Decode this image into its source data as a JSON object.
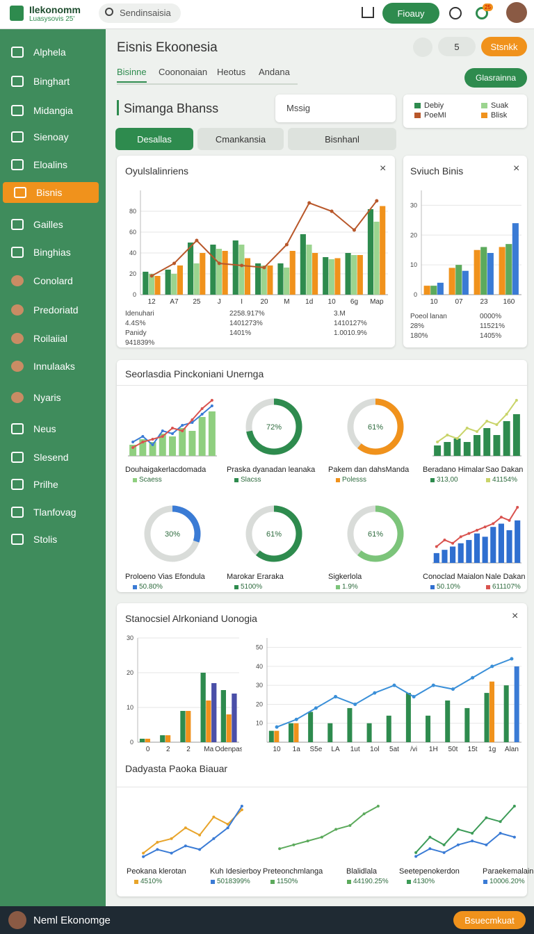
{
  "header": {
    "brand": "Ilekonomm",
    "tagline": "Luasysovis 25'",
    "search": "Sendinsaisia",
    "button": "Fioauy",
    "badge": "25"
  },
  "sidebar": {
    "items": [
      "Alphela",
      "Binghart",
      "Midangia",
      "Sienoay",
      "Eloalins",
      "Bisnis",
      "Gailles",
      "Binghias",
      "Conolard",
      "Predoriatd",
      "Roilaiial",
      "Innulaaks",
      "Nyaris",
      "Neus",
      "Slesend",
      "Prilhe",
      "Tlanfovag",
      "Stolis"
    ],
    "active": 5
  },
  "page": {
    "title": "Eisnis Ekoonesia",
    "count": "5",
    "action": "Stsnkk",
    "tabs": [
      "Bisinne",
      "Coononaian",
      "Heotus",
      "Andana"
    ],
    "tab_active": 0,
    "dropdown": "Glasrainna"
  },
  "section": {
    "title": "Simanga Bhanss",
    "search": "Mssig",
    "buttons": [
      "Desallas",
      "Cmankansia",
      "Bisnhanl"
    ]
  },
  "panels": [
    "Seorlasdia Pinckoniani Unernga",
    "Dadyasta Paoka Biauar"
  ],
  "footer": {
    "name": "Neml Ekonomge",
    "button": "Bsuecmkuat"
  },
  "chart_data": [
    {
      "type": "bar",
      "title": "Oyulslalinriens",
      "categories": [
        "12",
        "A7",
        "25",
        "J",
        "I",
        "20",
        "M",
        "1d",
        "10",
        "6g",
        "Map"
      ],
      "ylim": [
        0,
        100
      ],
      "yticks": [
        0,
        20,
        40,
        60,
        80
      ],
      "series": [
        {
          "name": "Debiy",
          "color": "#2e8b4e",
          "values": [
            22,
            24,
            50,
            48,
            52,
            30,
            30,
            58,
            36,
            40,
            82
          ]
        },
        {
          "name": "Suak",
          "color": "#9bd48f",
          "values": [
            20,
            20,
            30,
            44,
            48,
            28,
            26,
            48,
            34,
            38,
            70
          ]
        },
        {
          "name": "Blisk",
          "color": "#f0921c",
          "values": [
            18,
            28,
            40,
            42,
            35,
            28,
            42,
            40,
            35,
            38,
            85
          ]
        },
        {
          "name": "PoeMI",
          "color": "#b8572a",
          "style": "line",
          "values": [
            18,
            30,
            52,
            30,
            28,
            26,
            48,
            88,
            80,
            62,
            90
          ]
        }
      ],
      "notes": [
        "Idenuhari",
        "2258.917%",
        "3.M",
        "4.4S%",
        "1401273%",
        "1410127%",
        "Panidy",
        "1401%",
        "1.0010.9%",
        "941839%"
      ]
    },
    {
      "type": "bar",
      "title": "Sviuch Binis",
      "categories": [
        "10",
        "07",
        "23",
        "160"
      ],
      "ylim": [
        0,
        35
      ],
      "yticks": [
        0,
        10,
        20,
        30
      ],
      "series": [
        {
          "color": "#f0921c",
          "values": [
            3,
            9,
            15,
            16
          ]
        },
        {
          "color": "#5caa5c",
          "values": [
            3,
            10,
            16,
            17
          ]
        },
        {
          "color": "#3a7bd5",
          "values": [
            4,
            8,
            14,
            24
          ]
        }
      ],
      "notes": [
        "Poeol lanan",
        "0000%",
        "28%",
        "11521%",
        "180%",
        "1405%"
      ]
    },
    {
      "type": "bar",
      "title": "Douhaigakerlacdomada",
      "notes": [
        "Scaess"
      ],
      "series": [
        {
          "color": "#8fcf7f",
          "values": [
            4,
            6,
            5,
            8,
            7,
            10,
            9,
            14,
            16
          ]
        },
        {
          "color": "#3a7bd5",
          "style": "line",
          "values": [
            5,
            7,
            4,
            9,
            8,
            11,
            12,
            15,
            18
          ]
        },
        {
          "color": "#d9534f",
          "style": "line",
          "values": [
            3,
            5,
            6,
            7,
            10,
            9,
            13,
            17,
            20
          ]
        }
      ]
    },
    {
      "type": "donut",
      "title": "Praska dyanadan leanaka",
      "notes": [
        "Slacss"
      ],
      "values": [
        72
      ],
      "value_labels": [
        "72%"
      ],
      "color": "#2e8b4e"
    },
    {
      "type": "donut",
      "title": "Pakem dan dahsManda",
      "notes": [
        "Polesss"
      ],
      "values": [
        61
      ],
      "value_labels": [
        "61%"
      ],
      "color": "#f0921c"
    },
    {
      "type": "bar",
      "title": "Beradano Himalar",
      "notes": [
        "313,00",
        "Sao Dakan",
        "41154%"
      ],
      "series": [
        {
          "color": "#2e8b4e",
          "values": [
            3,
            4,
            5,
            4,
            6,
            8,
            6,
            10,
            12
          ]
        },
        {
          "color": "#c9d46a",
          "style": "line",
          "values": [
            4,
            6,
            5,
            8,
            7,
            10,
            9,
            12,
            16
          ]
        }
      ]
    },
    {
      "type": "donut",
      "title": "Proloeno Vias Efondula",
      "notes": [
        "50.80%"
      ],
      "values": [
        30
      ],
      "value_labels": [
        "30%"
      ],
      "color": "#3a7bd5"
    },
    {
      "type": "donut",
      "title": "Marokar Eraraka",
      "notes": [
        "5100%"
      ],
      "values": [
        61
      ],
      "value_labels": [
        "61%"
      ],
      "color": "#2e8b4e"
    },
    {
      "type": "donut",
      "title": "Sigkerlola",
      "notes": [
        "1.9%"
      ],
      "values": [
        61
      ],
      "value_labels": [
        "61%"
      ],
      "color": "#7cc47a"
    },
    {
      "type": "bar",
      "title": "Conoclad Maialon",
      "notes": [
        "50.10%",
        "Nale Dakan",
        "611107%"
      ],
      "series": [
        {
          "color": "#2f6fd0",
          "values": [
            3,
            4,
            5,
            6,
            7,
            9,
            8,
            11,
            12,
            10,
            13
          ]
        },
        {
          "color": "#d9534f",
          "style": "line",
          "values": [
            5,
            7,
            6,
            8,
            9,
            10,
            11,
            12,
            14,
            13,
            17
          ]
        }
      ]
    },
    {
      "type": "bar",
      "categories": [
        "0",
        "2",
        "2",
        "Ma",
        "Odenpas"
      ],
      "ylim": [
        0,
        30
      ],
      "yticks": [
        0,
        10,
        20,
        30
      ],
      "series": [
        {
          "color": "#2e8b4e",
          "values": [
            1,
            2,
            9,
            20,
            15
          ]
        },
        {
          "color": "#f0921c",
          "values": [
            1,
            2,
            9,
            12,
            8
          ]
        },
        {
          "color": "#4a4fa8",
          "values": [
            0,
            0,
            0,
            17,
            14
          ]
        }
      ]
    },
    {
      "type": "bar",
      "title": "Stanocsiel Alrkoniand Uonogia",
      "categories": [
        "10",
        "1a",
        "S5e",
        "LA",
        "1ut",
        "1ol",
        "5at",
        "/vi",
        "1H",
        "50t",
        "15t",
        "1g",
        "Alan"
      ],
      "ylim": [
        0,
        55
      ],
      "yticks": [
        10,
        20,
        30,
        40,
        50
      ],
      "series": [
        {
          "color": "#2e8b4e",
          "values": [
            6,
            10,
            16,
            10,
            18,
            10,
            14,
            26,
            14,
            22,
            18,
            26,
            30
          ]
        },
        {
          "color": "#f0921c",
          "values": [
            6,
            10,
            0,
            0,
            0,
            0,
            0,
            0,
            0,
            0,
            0,
            32,
            0
          ]
        },
        {
          "color": "#3a7bd5",
          "values": [
            0,
            0,
            0,
            0,
            0,
            0,
            0,
            0,
            0,
            0,
            0,
            0,
            40
          ]
        },
        {
          "color": "#3a8fd8",
          "style": "line",
          "values": [
            8,
            12,
            18,
            24,
            20,
            26,
            30,
            24,
            30,
            28,
            34,
            40,
            44
          ]
        }
      ]
    },
    {
      "type": "line",
      "title": "Peokana klerotan",
      "notes": [
        "4510%",
        "Kuh Idesierboy",
        "5018399%"
      ],
      "series": [
        {
          "color": "#e8a42a",
          "values": [
            2,
            5,
            6,
            9,
            7,
            12,
            10,
            14
          ]
        },
        {
          "color": "#3a7bd5",
          "values": [
            1,
            3,
            2,
            4,
            3,
            6,
            9,
            15
          ]
        }
      ]
    },
    {
      "type": "line",
      "title": "Preteonchmlanga",
      "notes": [
        "1150%",
        "Blalidlala",
        "44190.25%"
      ],
      "series": [
        {
          "color": "#5caa5c",
          "values": [
            3,
            4,
            5,
            6,
            8,
            9,
            12,
            14
          ]
        }
      ]
    },
    {
      "type": "line",
      "title": "Seetepenokerdon",
      "notes": [
        "4130%",
        "Paraekemalain",
        "10006.20%"
      ],
      "series": [
        {
          "color": "#3c9b57",
          "values": [
            2,
            6,
            4,
            8,
            7,
            11,
            10,
            14
          ]
        },
        {
          "color": "#3a7bd5",
          "values": [
            1,
            3,
            2,
            4,
            5,
            4,
            7,
            6
          ]
        }
      ]
    }
  ]
}
